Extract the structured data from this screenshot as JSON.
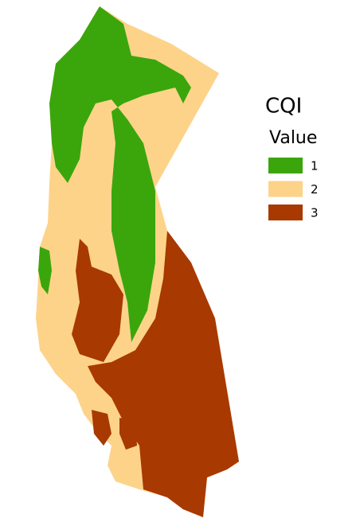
{
  "legend": {
    "title": "CQI",
    "subtitle": "Value",
    "items": [
      {
        "label": "1",
        "color": "#3aa60b"
      },
      {
        "label": "2",
        "color": "#fdd38a"
      },
      {
        "label": "3",
        "color": "#a83900"
      }
    ]
  }
}
